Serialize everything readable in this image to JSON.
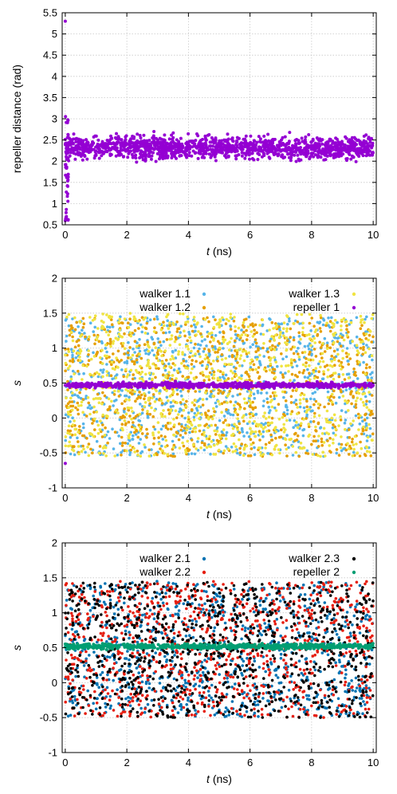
{
  "chart_data": [
    {
      "type": "scatter",
      "xlabel": "t (ns)",
      "xlabel_italic": "t",
      "xlabel_unit": "(ns)",
      "ylabel": "repeller distance (rad)",
      "xlim": [
        -0.1,
        10.1
      ],
      "ylim": [
        0.5,
        5.5
      ],
      "xticks": [
        0,
        2,
        4,
        6,
        8,
        10
      ],
      "yticks": [
        0.5,
        1,
        1.5,
        2,
        2.5,
        3,
        3.5,
        4,
        4.5,
        5,
        5.5
      ],
      "grid": true,
      "legend": null,
      "series": [
        {
          "color": "#9400d3",
          "kind": "band",
          "t_start": 0,
          "t_end": 10,
          "center": 2.32,
          "half_width": 0.28,
          "initial_spread": {
            "t_end": 0.1,
            "ymin": 0.55,
            "ymax": 3.0
          },
          "extra_points": [
            [
              0,
              5.3
            ],
            [
              0.01,
              3.05
            ],
            [
              0.0,
              0.6
            ]
          ]
        }
      ]
    },
    {
      "type": "scatter",
      "xlabel": "t (ns)",
      "xlabel_italic": "t",
      "xlabel_unit": "(ns)",
      "ylabel": "s",
      "xlim": [
        -0.1,
        10.1
      ],
      "ylim": [
        -1,
        2
      ],
      "xticks": [
        0,
        2,
        4,
        6,
        8,
        10
      ],
      "yticks": [
        -1,
        -0.5,
        0,
        0.5,
        1,
        1.5,
        2
      ],
      "grid": true,
      "legend": "top",
      "series": [
        {
          "name": "walker 1.1",
          "color": "#56b4e9",
          "kind": "fill",
          "ymin": -0.55,
          "ymax": 1.45
        },
        {
          "name": "walker 1.2",
          "color": "#e69f00",
          "kind": "fill",
          "ymin": -0.55,
          "ymax": 1.45
        },
        {
          "name": "walker 1.3",
          "color": "#f0e442",
          "kind": "fill",
          "ymin": -0.55,
          "ymax": 1.5
        },
        {
          "name": "repeller 1",
          "color": "#9400d3",
          "kind": "band",
          "t_start": 0,
          "t_end": 10,
          "center": 0.47,
          "half_width": 0.04,
          "extra_points": [
            [
              0,
              -0.65
            ]
          ]
        }
      ]
    },
    {
      "type": "scatter",
      "xlabel": "t (ns)",
      "xlabel_italic": "t",
      "xlabel_unit": "(ns)",
      "ylabel": "s",
      "xlim": [
        -0.1,
        10.1
      ],
      "ylim": [
        -1,
        2
      ],
      "xticks": [
        0,
        2,
        4,
        6,
        8,
        10
      ],
      "yticks": [
        -1,
        -0.5,
        0,
        0.5,
        1,
        1.5,
        2
      ],
      "grid": true,
      "legend": "top",
      "series": [
        {
          "name": "walker 2.1",
          "color": "#0072b2",
          "kind": "fill",
          "ymin": -0.5,
          "ymax": 1.45
        },
        {
          "name": "walker 2.2",
          "color": "#e51e10",
          "kind": "fill",
          "ymin": -0.5,
          "ymax": 1.45
        },
        {
          "name": "walker 2.3",
          "color": "#000000",
          "kind": "fill",
          "ymin": -0.5,
          "ymax": 1.45
        },
        {
          "name": "repeller 2",
          "color": "#009e73",
          "kind": "band",
          "t_start": 0,
          "t_end": 10,
          "center": 0.52,
          "half_width": 0.04
        }
      ]
    }
  ]
}
